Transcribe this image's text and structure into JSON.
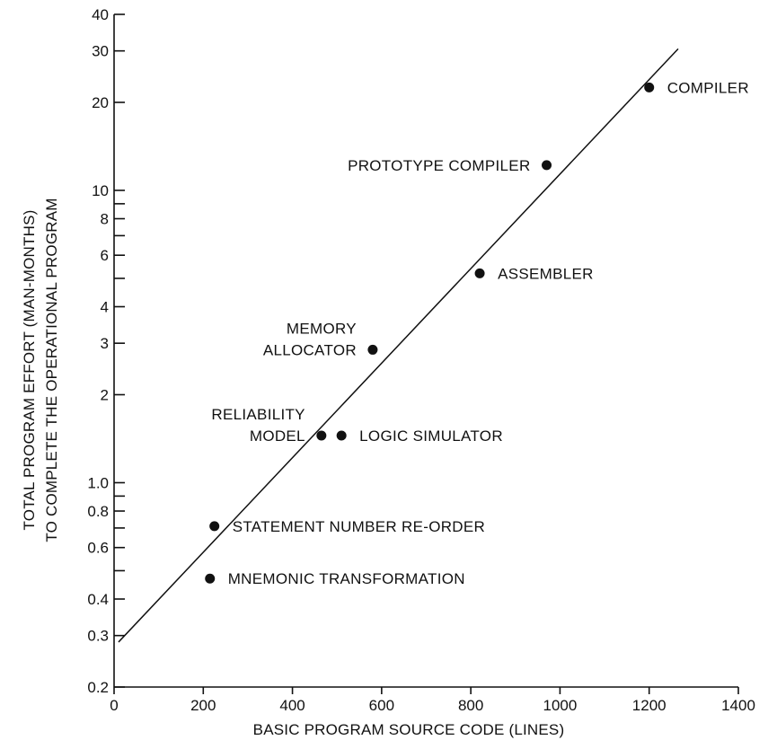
{
  "chart_data": {
    "type": "scatter",
    "title": "",
    "xlabel": "BASIC PROGRAM SOURCE CODE (LINES)",
    "ylabel_lines": [
      "TOTAL PROGRAM EFFORT (MAN-MONTHS)",
      "TO COMPLETE THE OPERATIONAL PROGRAM"
    ],
    "x_scale": "linear",
    "y_scale": "log",
    "xlim": [
      0,
      1400
    ],
    "ylim": [
      0.2,
      40
    ],
    "x_ticks": [
      0,
      200,
      400,
      600,
      800,
      1000,
      1200,
      1400
    ],
    "x_tick_labels": [
      "0",
      "200",
      "400",
      "600",
      "800",
      "1000",
      "1200",
      "1400"
    ],
    "y_ticks": [
      0.2,
      0.3,
      0.4,
      0.6,
      0.8,
      1.0,
      2,
      3,
      4,
      6,
      8,
      10,
      20,
      30,
      40
    ],
    "y_tick_labels": [
      "0.2",
      "0.3",
      "0.4",
      "0.6",
      "0.8",
      "1.0",
      "2",
      "3",
      "4",
      "6",
      "8",
      "10",
      "20",
      "30",
      "40"
    ],
    "y_minor_ticks": [
      0.5,
      0.7,
      0.9,
      5,
      7,
      9
    ],
    "grid": false,
    "legend": "none",
    "points": [
      {
        "x": 1200,
        "y": 22.5,
        "label": [
          "COMPILER"
        ],
        "label_side": "right"
      },
      {
        "x": 970,
        "y": 12.2,
        "label": [
          "PROTOTYPE COMPILER"
        ],
        "label_side": "left"
      },
      {
        "x": 820,
        "y": 5.2,
        "label": [
          "ASSEMBLER"
        ],
        "label_side": "right"
      },
      {
        "x": 580,
        "y": 2.85,
        "label": [
          "MEMORY",
          "ALLOCATOR"
        ],
        "label_side": "left"
      },
      {
        "x": 465,
        "y": 1.45,
        "label": [
          "RELIABILITY",
          "MODEL"
        ],
        "label_side": "left"
      },
      {
        "x": 510,
        "y": 1.45,
        "label": [
          "LOGIC SIMULATOR"
        ],
        "label_side": "right"
      },
      {
        "x": 225,
        "y": 0.71,
        "label": [
          "STATEMENT NUMBER RE-ORDER"
        ],
        "label_side": "right"
      },
      {
        "x": 215,
        "y": 0.47,
        "label": [
          "MNEMONIC TRANSFORMATION"
        ],
        "label_side": "right"
      }
    ],
    "fit_line": {
      "x": [
        10,
        1265
      ],
      "y": [
        0.285,
        30.5
      ]
    },
    "colors": {
      "ink": "#111111",
      "background": "#ffffff"
    }
  }
}
